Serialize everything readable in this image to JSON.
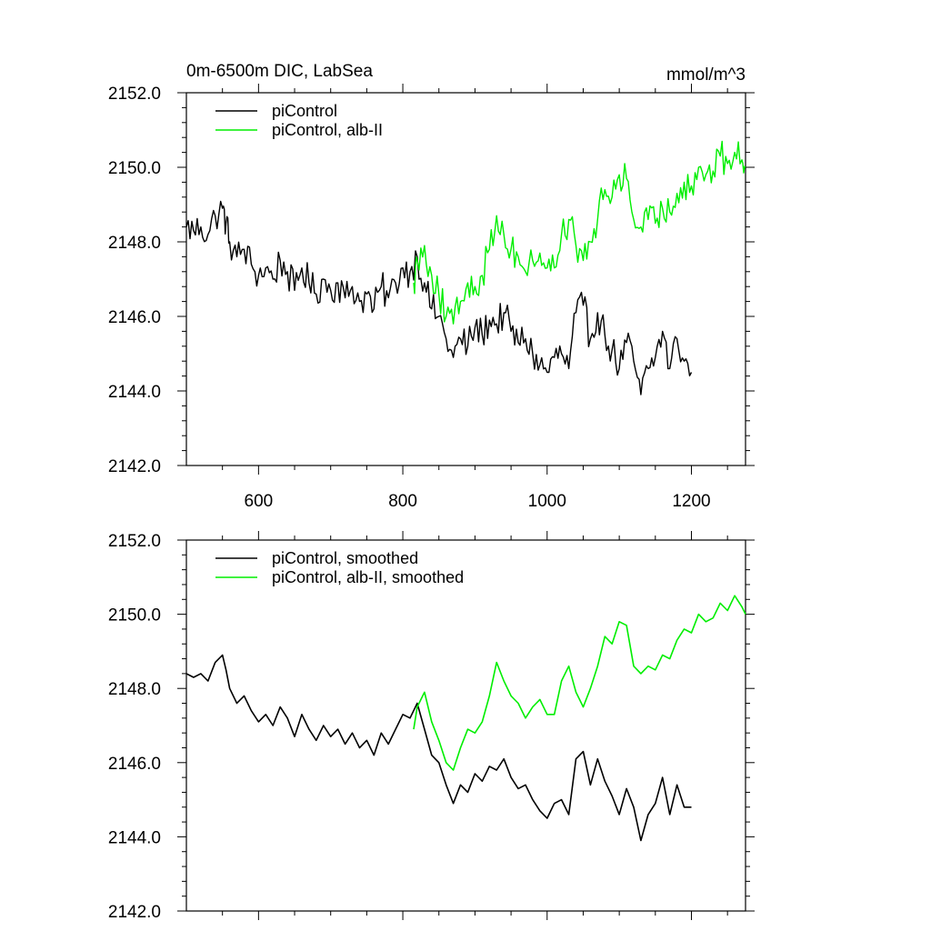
{
  "figure": {
    "title_left": "0m-6500m DIC, LabSea",
    "title_right": "mmol/m^3"
  },
  "chart_data": [
    {
      "type": "line",
      "title": "0m-6500m DIC, LabSea",
      "units": "mmol/m^3",
      "xlim": [
        500,
        1275
      ],
      "ylim": [
        2142,
        2152
      ],
      "x_ticks": [
        600,
        800,
        1000,
        1200
      ],
      "x_tick_labels": [
        "600",
        "800",
        "1000",
        "1200"
      ],
      "y_ticks": [
        2142,
        2144,
        2146,
        2148,
        2150,
        2152
      ],
      "y_tick_labels": [
        "2142.0",
        "2144.0",
        "2146.0",
        "2148.0",
        "2150.0",
        "2152.0"
      ],
      "grid": false,
      "legend_position": "top-left",
      "series": [
        {
          "name": "piControl",
          "color": "#000000",
          "x": [
            500,
            510,
            520,
            530,
            540,
            550,
            555,
            560,
            570,
            580,
            590,
            600,
            610,
            620,
            630,
            640,
            650,
            660,
            670,
            680,
            690,
            700,
            710,
            720,
            730,
            740,
            750,
            760,
            770,
            780,
            790,
            800,
            810,
            820,
            830,
            840,
            850,
            860,
            870,
            880,
            890,
            900,
            910,
            920,
            930,
            940,
            950,
            960,
            970,
            980,
            990,
            1000,
            1010,
            1020,
            1030,
            1040,
            1050,
            1060,
            1070,
            1080,
            1090,
            1100,
            1110,
            1120,
            1130,
            1140,
            1150,
            1160,
            1170,
            1180,
            1190,
            1200
          ],
          "values": [
            2148.4,
            2148.3,
            2148.4,
            2148.2,
            2148.7,
            2148.9,
            2148.5,
            2148.0,
            2147.6,
            2147.8,
            2147.4,
            2147.1,
            2147.3,
            2147.0,
            2147.5,
            2147.2,
            2146.7,
            2147.3,
            2146.9,
            2146.6,
            2147.0,
            2146.7,
            2146.9,
            2146.5,
            2146.8,
            2146.4,
            2146.6,
            2146.2,
            2146.8,
            2146.5,
            2146.9,
            2147.3,
            2147.2,
            2147.6,
            2146.9,
            2146.2,
            2146.0,
            2145.4,
            2144.9,
            2145.4,
            2145.2,
            2145.7,
            2145.5,
            2145.9,
            2145.8,
            2146.1,
            2145.6,
            2145.3,
            2145.4,
            2145.0,
            2144.7,
            2144.5,
            2144.9,
            2145.0,
            2144.6,
            2146.1,
            2146.3,
            2145.4,
            2146.1,
            2145.5,
            2145.1,
            2144.6,
            2145.3,
            2144.8,
            2143.9,
            2144.6,
            2144.9,
            2145.6,
            2144.6,
            2145.4,
            2144.8,
            2144.5
          ]
        },
        {
          "name": "piControl, alb-II",
          "color": "#00ee00",
          "x": [
            815,
            820,
            830,
            840,
            850,
            860,
            870,
            880,
            890,
            900,
            910,
            920,
            930,
            940,
            950,
            960,
            970,
            980,
            990,
            1000,
            1010,
            1020,
            1030,
            1040,
            1050,
            1060,
            1070,
            1080,
            1090,
            1100,
            1110,
            1120,
            1130,
            1140,
            1150,
            1160,
            1170,
            1180,
            1190,
            1200,
            1210,
            1220,
            1230,
            1240,
            1250,
            1260,
            1270,
            1275
          ],
          "values": [
            2146.9,
            2147.5,
            2147.9,
            2147.1,
            2146.6,
            2146.0,
            2145.8,
            2146.4,
            2146.9,
            2146.8,
            2147.1,
            2147.8,
            2148.7,
            2148.2,
            2147.8,
            2147.6,
            2147.2,
            2147.5,
            2147.7,
            2147.3,
            2147.3,
            2148.2,
            2148.6,
            2147.9,
            2147.5,
            2148.0,
            2148.6,
            2149.4,
            2149.2,
            2149.8,
            2149.7,
            2148.6,
            2148.4,
            2148.6,
            2148.5,
            2148.9,
            2148.8,
            2149.3,
            2149.6,
            2149.5,
            2150.0,
            2149.8,
            2149.9,
            2150.3,
            2150.1,
            2150.4,
            2150.2,
            2150.0
          ]
        }
      ]
    },
    {
      "type": "line",
      "xlim": [
        500,
        1275
      ],
      "ylim": [
        2142,
        2152
      ],
      "x_ticks": [
        600,
        800,
        1000,
        1200
      ],
      "y_ticks": [
        2142,
        2144,
        2146,
        2148,
        2150,
        2152
      ],
      "y_tick_labels": [
        "2142.0",
        "2144.0",
        "2146.0",
        "2148.0",
        "2150.0",
        "2152.0"
      ],
      "grid": false,
      "legend_position": "top-left",
      "series": [
        {
          "name": "piControl, smoothed",
          "color": "#000000",
          "x": [
            500,
            510,
            520,
            530,
            540,
            550,
            555,
            560,
            570,
            580,
            590,
            600,
            610,
            620,
            630,
            640,
            650,
            660,
            670,
            680,
            690,
            700,
            710,
            720,
            730,
            740,
            750,
            760,
            770,
            780,
            790,
            800,
            810,
            820,
            830,
            840,
            850,
            860,
            870,
            880,
            890,
            900,
            910,
            920,
            930,
            940,
            950,
            960,
            970,
            980,
            990,
            1000,
            1010,
            1020,
            1030,
            1040,
            1050,
            1060,
            1070,
            1080,
            1090,
            1100,
            1110,
            1120,
            1130,
            1140,
            1150,
            1160,
            1170,
            1180,
            1190,
            1200
          ],
          "values": [
            2148.4,
            2148.3,
            2148.4,
            2148.2,
            2148.7,
            2148.9,
            2148.5,
            2148.0,
            2147.6,
            2147.8,
            2147.4,
            2147.1,
            2147.3,
            2147.0,
            2147.5,
            2147.2,
            2146.7,
            2147.3,
            2146.9,
            2146.6,
            2147.0,
            2146.7,
            2146.9,
            2146.5,
            2146.8,
            2146.4,
            2146.6,
            2146.2,
            2146.8,
            2146.5,
            2146.9,
            2147.3,
            2147.2,
            2147.6,
            2146.9,
            2146.2,
            2146.0,
            2145.4,
            2144.9,
            2145.4,
            2145.2,
            2145.7,
            2145.5,
            2145.9,
            2145.8,
            2146.1,
            2145.6,
            2145.3,
            2145.4,
            2145.0,
            2144.7,
            2144.5,
            2144.9,
            2145.0,
            2144.6,
            2146.1,
            2146.3,
            2145.4,
            2146.1,
            2145.5,
            2145.1,
            2144.6,
            2145.3,
            2144.8,
            2143.9,
            2144.6,
            2144.9,
            2145.6,
            2144.6,
            2145.4,
            2144.8,
            2144.8
          ]
        },
        {
          "name": "piControl, alb-II, smoothed",
          "color": "#00ee00",
          "x": [
            815,
            820,
            830,
            840,
            850,
            860,
            870,
            880,
            890,
            900,
            910,
            920,
            930,
            940,
            950,
            960,
            970,
            980,
            990,
            1000,
            1010,
            1020,
            1030,
            1040,
            1050,
            1060,
            1070,
            1080,
            1090,
            1100,
            1110,
            1120,
            1130,
            1140,
            1150,
            1160,
            1170,
            1180,
            1190,
            1200,
            1210,
            1220,
            1230,
            1240,
            1250,
            1260,
            1270,
            1275
          ],
          "values": [
            2146.9,
            2147.5,
            2147.9,
            2147.1,
            2146.6,
            2146.0,
            2145.8,
            2146.4,
            2146.9,
            2146.8,
            2147.1,
            2147.8,
            2148.7,
            2148.2,
            2147.8,
            2147.6,
            2147.2,
            2147.5,
            2147.7,
            2147.3,
            2147.3,
            2148.2,
            2148.6,
            2147.9,
            2147.5,
            2148.0,
            2148.6,
            2149.4,
            2149.2,
            2149.8,
            2149.7,
            2148.6,
            2148.4,
            2148.6,
            2148.5,
            2148.9,
            2148.8,
            2149.3,
            2149.6,
            2149.5,
            2150.0,
            2149.8,
            2149.9,
            2150.3,
            2150.1,
            2150.5,
            2150.2,
            2150.0
          ]
        }
      ]
    }
  ]
}
